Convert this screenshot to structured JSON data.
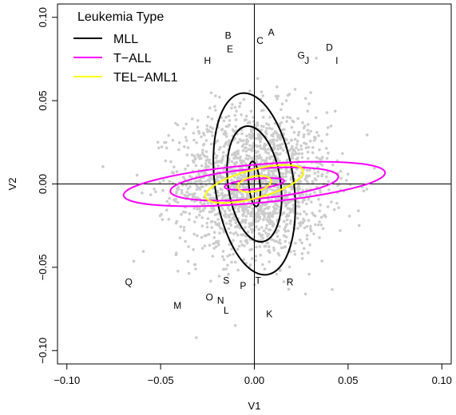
{
  "chart_data": {
    "type": "scatter",
    "xlabel": "V1",
    "ylabel": "V2",
    "xlim": [
      -0.105,
      0.105
    ],
    "ylim": [
      -0.108,
      0.108
    ],
    "x_ticks": [
      -0.1,
      -0.05,
      0.0,
      0.05,
      0.1
    ],
    "x_tick_labels": [
      "−0.10",
      "−0.05",
      "0.00",
      "0.05",
      "0.10"
    ],
    "y_ticks": [
      -0.1,
      -0.05,
      0.0,
      0.05,
      0.1
    ],
    "y_tick_labels": [
      "−0.10",
      "−0.05",
      "0.00",
      "0.05",
      "0.10"
    ],
    "reference_lines": {
      "x": 0,
      "y": 0
    },
    "point_cloud": {
      "color": "#cccccc",
      "center": [
        0.0,
        0.0
      ],
      "spread": [
        0.02,
        0.022
      ],
      "count": 1800
    },
    "legend": {
      "title": "Leukemia Type",
      "position": "top-left",
      "entries": [
        {
          "label": "MLL",
          "color": "#000000"
        },
        {
          "label": "T−ALL",
          "color": "#ff00ff"
        },
        {
          "label": "TEL−AML1",
          "color": "#ffff00"
        }
      ]
    },
    "series": [
      {
        "name": "MLL",
        "color": "#000000",
        "ellipses": [
          {
            "cx": 0.0,
            "cy": 0.0,
            "rx": 0.003,
            "ry": 0.0135,
            "tilt_deg": -5
          },
          {
            "cx": 0.0,
            "cy": 0.0,
            "rx": 0.014,
            "ry": 0.035,
            "tilt_deg": -8
          },
          {
            "cx": 0.0,
            "cy": 0.0,
            "rx": 0.021,
            "ry": 0.055,
            "tilt_deg": -8
          }
        ]
      },
      {
        "name": "T−ALL",
        "color": "#ff00ff",
        "ellipses": [
          {
            "cx": 0.0,
            "cy": 0.0,
            "rx": 0.016,
            "ry": 0.003,
            "tilt_deg": -6
          },
          {
            "cx": 0.0,
            "cy": 0.0,
            "rx": 0.045,
            "ry": 0.009,
            "tilt_deg": -5
          },
          {
            "cx": 0.0,
            "cy": 0.0,
            "rx": 0.07,
            "ry": 0.0115,
            "tilt_deg": -5
          }
        ]
      },
      {
        "name": "TEL−AML1",
        "color": "#ffff00",
        "ellipses": [
          {
            "cx": 0.0,
            "cy": 0.0,
            "rx": 0.009,
            "ry": 0.0045,
            "tilt_deg": -12
          },
          {
            "cx": 0.0,
            "cy": 0.0,
            "rx": 0.027,
            "ry": 0.0085,
            "tilt_deg": -15
          }
        ]
      }
    ],
    "annotations": [
      {
        "text": "A",
        "x": 0.009,
        "y": 0.091
      },
      {
        "text": "B",
        "x": -0.014,
        "y": 0.089
      },
      {
        "text": "C",
        "x": 0.003,
        "y": 0.086
      },
      {
        "text": "D",
        "x": 0.04,
        "y": 0.082
      },
      {
        "text": "E",
        "x": -0.013,
        "y": 0.081
      },
      {
        "text": "G",
        "x": 0.025,
        "y": 0.077
      },
      {
        "text": "J",
        "x": 0.028,
        "y": 0.074
      },
      {
        "text": "I",
        "x": 0.044,
        "y": 0.074
      },
      {
        "text": "H",
        "x": -0.025,
        "y": 0.074
      },
      {
        "text": "Q",
        "x": -0.067,
        "y": -0.059
      },
      {
        "text": "S",
        "x": -0.015,
        "y": -0.058
      },
      {
        "text": "T",
        "x": 0.002,
        "y": -0.058
      },
      {
        "text": "R",
        "x": 0.019,
        "y": -0.059
      },
      {
        "text": "P",
        "x": -0.006,
        "y": -0.061
      },
      {
        "text": "O",
        "x": -0.024,
        "y": -0.068
      },
      {
        "text": "N",
        "x": -0.018,
        "y": -0.07
      },
      {
        "text": "M",
        "x": -0.041,
        "y": -0.073
      },
      {
        "text": "L",
        "x": -0.015,
        "y": -0.076
      },
      {
        "text": "K",
        "x": 0.008,
        "y": -0.078
      }
    ]
  }
}
